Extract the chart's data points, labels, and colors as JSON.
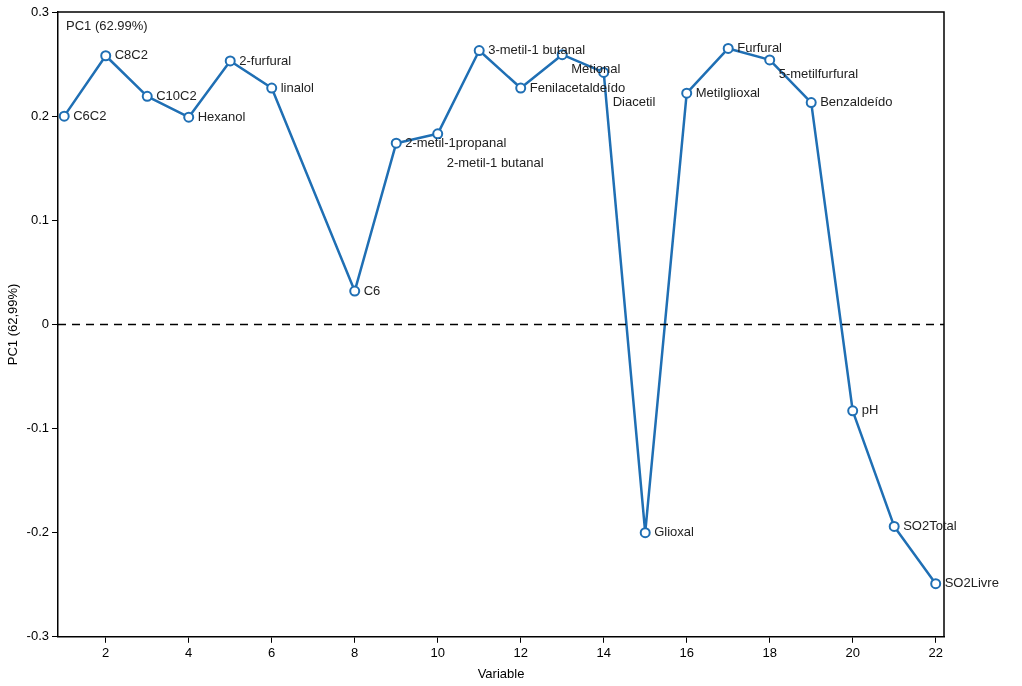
{
  "chart_data": {
    "type": "line",
    "xlabel": "Variable",
    "ylabel": "PC1 (62,99%)",
    "x": [
      1,
      2,
      3,
      4,
      5,
      6,
      8,
      9,
      10,
      11,
      12,
      13,
      14,
      15,
      16,
      17,
      18,
      19,
      20,
      21,
      22
    ],
    "series": [
      {
        "color": "#1f6fb4",
        "values": [
          0.2,
          0.258,
          0.219,
          0.199,
          0.253,
          0.227,
          0.032,
          0.174,
          0.183,
          0.263,
          0.227,
          0.259,
          0.242,
          -0.2,
          0.222,
          0.265,
          0.254,
          0.213,
          -0.083,
          -0.194,
          -0.249
        ]
      }
    ],
    "xlim": [
      0.85,
      22.2
    ],
    "xticks": [
      2,
      4,
      6,
      8,
      10,
      12,
      14,
      16,
      18,
      20,
      22
    ],
    "ylim": [
      -0.3,
      0.3
    ],
    "yticks": [
      -0.3,
      -0.2,
      -0.1,
      0,
      0.1,
      0.2,
      0.3
    ],
    "marker": "circle",
    "line_style": "solid",
    "grid": false,
    "legend": false,
    "ref_lines": [
      {
        "axis": "y",
        "value": 0,
        "color": "#000000",
        "line_style": "dashed"
      }
    ],
    "annotations": [
      "PC1 (62.99%)",
      {
        "text": "C6C2",
        "x": 1,
        "y": 0.2
      },
      {
        "text": "C8C2",
        "x": 2,
        "y": 0.258
      },
      {
        "text": "C10C2",
        "x": 3,
        "y": 0.219
      },
      {
        "text": "Hexanol",
        "x": 4,
        "y": 0.199
      },
      {
        "text": "2-furfural",
        "x": 5,
        "y": 0.253
      },
      {
        "text": "linalol",
        "x": 6,
        "y": 0.227
      },
      {
        "text": "C6",
        "x": 8,
        "y": 0.032
      },
      {
        "text": "2-metil-1propanal",
        "x": 9,
        "y": 0.174
      },
      {
        "text": "2-metil-1 butanal",
        "x": 10,
        "y": 0.183
      },
      {
        "text": "3-metil-1 butanal",
        "x": 11,
        "y": 0.263
      },
      {
        "text": "Fenilacetaldeído",
        "x": 12,
        "y": 0.227
      },
      {
        "text": "Metional",
        "x": 13,
        "y": 0.259
      },
      {
        "text": "Diacetil",
        "x": 14,
        "y": 0.242
      },
      {
        "text": "Glioxal",
        "x": 15,
        "y": -0.2
      },
      {
        "text": "Metilglioxal",
        "x": 16,
        "y": 0.222
      },
      {
        "text": "Furfural",
        "x": 17,
        "y": 0.265
      },
      {
        "text": "5-metilfurfural",
        "x": 18,
        "y": 0.254
      },
      {
        "text": "Benzaldeído",
        "x": 19,
        "y": 0.213
      },
      {
        "text": "pH",
        "x": 20,
        "y": -0.083
      },
      {
        "text": "SO2Total",
        "x": 21,
        "y": -0.194
      },
      {
        "text": "SO2Livre",
        "x": 22,
        "y": -0.249
      }
    ]
  }
}
